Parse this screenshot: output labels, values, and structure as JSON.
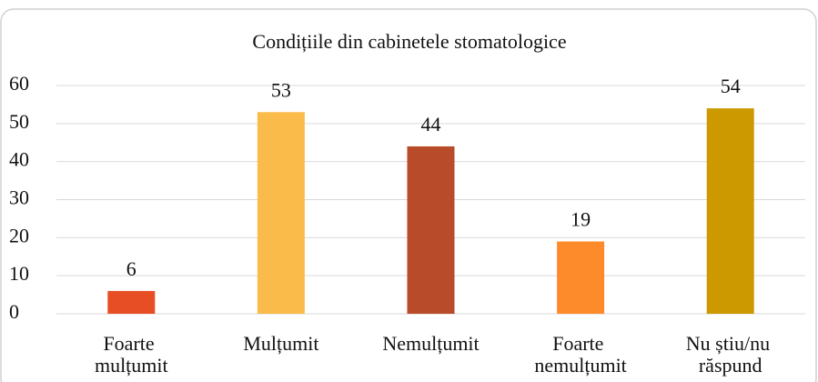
{
  "chart_data": {
    "type": "bar",
    "title": "Condițiile din cabinetele stomatologice",
    "categories": [
      "Foarte mulțumit",
      "Mulțumit",
      "Nemulțumit",
      "Foarte nemulțumit",
      "Nu știu/nu răspund"
    ],
    "values": [
      6,
      53,
      44,
      19,
      54
    ],
    "colors": [
      "#e84e25",
      "#fbbb4a",
      "#b84c2a",
      "#fd8a2b",
      "#cc9900"
    ],
    "ylim": [
      0,
      60
    ],
    "yticks": [
      0,
      10,
      20,
      30,
      40,
      50,
      60
    ],
    "grid": true,
    "data_labels": true
  }
}
